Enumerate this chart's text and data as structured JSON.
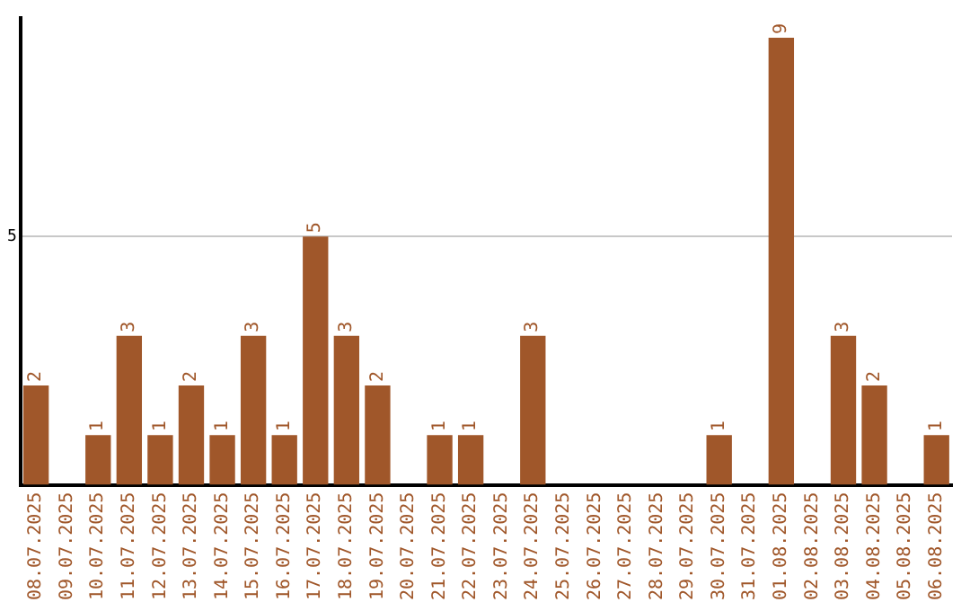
{
  "chart_data": {
    "type": "bar",
    "categories": [
      "08.07.2025",
      "09.07.2025",
      "10.07.2025",
      "11.07.2025",
      "12.07.2025",
      "13.07.2025",
      "14.07.2025",
      "15.07.2025",
      "16.07.2025",
      "17.07.2025",
      "18.07.2025",
      "19.07.2025",
      "20.07.2025",
      "21.07.2025",
      "22.07.2025",
      "23.07.2025",
      "24.07.2025",
      "25.07.2025",
      "26.07.2025",
      "27.07.2025",
      "28.07.2025",
      "29.07.2025",
      "30.07.2025",
      "31.07.2025",
      "01.08.2025",
      "02.08.2025",
      "03.08.2025",
      "04.08.2025",
      "05.08.2025",
      "06.08.2025"
    ],
    "values": [
      2,
      null,
      1,
      3,
      1,
      2,
      1,
      3,
      1,
      5,
      3,
      2,
      null,
      1,
      1,
      null,
      3,
      null,
      null,
      null,
      null,
      null,
      1,
      null,
      9,
      null,
      3,
      2,
      null,
      1
    ],
    "color": "#a0572a",
    "ylim": [
      0,
      9.4
    ],
    "yticks": [
      5
    ],
    "grid": "y",
    "data_labels": true,
    "legend": false
  }
}
